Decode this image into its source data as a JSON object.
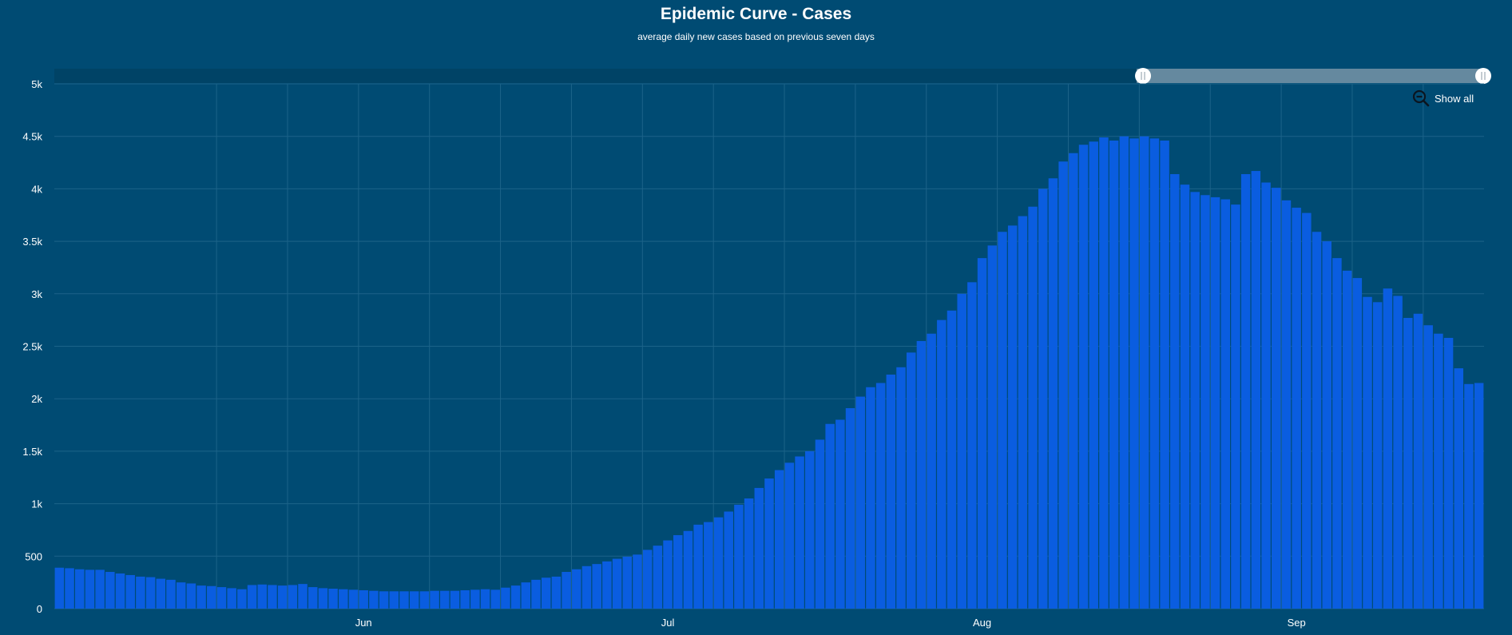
{
  "chart_data": {
    "type": "bar",
    "title": "Epidemic Curve - Cases",
    "subtitle": "average daily new cases based on previous seven days",
    "xlabel": "",
    "ylabel": "",
    "ylim": [
      0,
      5000
    ],
    "y_ticks": [
      {
        "value": 0,
        "label": "0"
      },
      {
        "value": 500,
        "label": "500"
      },
      {
        "value": 1000,
        "label": "1k"
      },
      {
        "value": 1500,
        "label": "1.5k"
      },
      {
        "value": 2000,
        "label": "2k"
      },
      {
        "value": 2500,
        "label": "2.5k"
      },
      {
        "value": 3000,
        "label": "3k"
      },
      {
        "value": 3500,
        "label": "3.5k"
      },
      {
        "value": 4000,
        "label": "4k"
      },
      {
        "value": 4500,
        "label": "4.5k"
      },
      {
        "value": 5000,
        "label": "5k"
      }
    ],
    "x_ticks": [
      {
        "index": 30,
        "label": "Jun"
      },
      {
        "index": 60,
        "label": "Jul"
      },
      {
        "index": 91,
        "label": "Aug"
      },
      {
        "index": 122,
        "label": "Sep"
      }
    ],
    "grid": true,
    "bar_color": "#0a5de0",
    "values": [
      390,
      385,
      375,
      370,
      370,
      350,
      335,
      320,
      305,
      300,
      285,
      275,
      250,
      240,
      220,
      215,
      205,
      195,
      185,
      225,
      230,
      225,
      220,
      225,
      235,
      205,
      195,
      190,
      185,
      180,
      175,
      170,
      165,
      165,
      165,
      165,
      165,
      170,
      170,
      170,
      175,
      180,
      185,
      180,
      200,
      220,
      250,
      275,
      295,
      305,
      350,
      375,
      405,
      425,
      450,
      475,
      495,
      515,
      560,
      600,
      650,
      700,
      740,
      800,
      825,
      870,
      925,
      990,
      1050,
      1150,
      1240,
      1320,
      1390,
      1450,
      1500,
      1610,
      1760,
      1800,
      1910,
      2020,
      2110,
      2150,
      2230,
      2300,
      2440,
      2550,
      2620,
      2750,
      2840,
      3000,
      3110,
      3340,
      3460,
      3590,
      3650,
      3740,
      3830,
      4000,
      4100,
      4260,
      4340,
      4420,
      4450,
      4490,
      4460,
      4500,
      4480,
      4500,
      4480,
      4460,
      4140,
      4040,
      3970,
      3940,
      3920,
      3900,
      3850,
      4140,
      4170,
      4060,
      4010,
      3890,
      3820,
      3770,
      3590,
      3500,
      3340,
      3220,
      3150,
      2970,
      2920,
      3050,
      2980,
      2770,
      2810,
      2700,
      2620,
      2580,
      2290,
      2140,
      2150
    ]
  },
  "zoom_control": {
    "show_all_label": "Show all",
    "icon": "zoom-out-icon",
    "range_start_fraction": 0.757,
    "range_end_fraction": 1.0
  },
  "colors": {
    "background": "#004b73",
    "plot_area": "#004b73",
    "scrollbar_track": "#004366",
    "scrollbar_selection": "#65899f",
    "grid": "#1c6389",
    "bar": "#0a5de0"
  }
}
